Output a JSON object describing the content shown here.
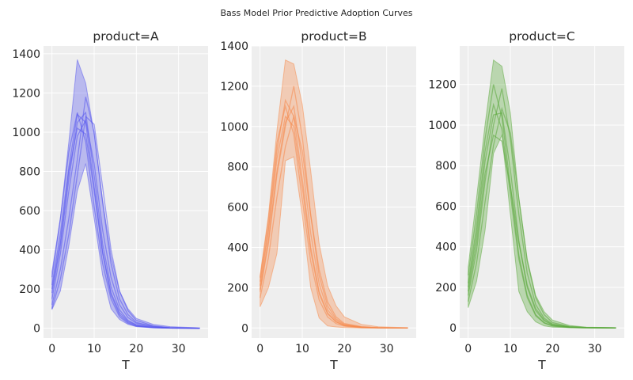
{
  "title": "Bass Model Prior Predictive Adoption Curves",
  "chart_data": [
    {
      "type": "line",
      "title": "product=A",
      "xlabel": "T",
      "ylabel": "",
      "color": "#5555ee",
      "xlim": [
        -2,
        37
      ],
      "ylim": [
        -50,
        1440
      ],
      "xticks": [
        0,
        10,
        20,
        30
      ],
      "yticks": [
        0,
        200,
        400,
        600,
        800,
        1000,
        1200,
        1400
      ],
      "grid": true,
      "band": {
        "x": [
          0,
          2,
          4,
          6,
          8,
          10,
          12,
          14,
          16,
          18,
          20,
          24,
          28,
          35
        ],
        "lower": [
          95,
          190,
          420,
          700,
          840,
          560,
          270,
          100,
          45,
          20,
          8,
          2,
          0,
          0
        ],
        "upper": [
          290,
          560,
          950,
          1370,
          1250,
          990,
          650,
          370,
          190,
          100,
          50,
          20,
          8,
          2
        ]
      },
      "series": [
        {
          "x": [
            0,
            2,
            4,
            6,
            8,
            10,
            12,
            14,
            16,
            18,
            20,
            24,
            28,
            35
          ],
          "y": [
            150,
            380,
            700,
            980,
            1060,
            840,
            500,
            260,
            120,
            55,
            25,
            8,
            2,
            0
          ]
        },
        {
          "x": [
            0,
            2,
            4,
            6,
            8,
            10,
            12,
            14,
            16,
            18,
            20,
            24,
            28,
            35
          ],
          "y": [
            220,
            480,
            820,
            1090,
            1050,
            720,
            390,
            180,
            80,
            35,
            15,
            4,
            1,
            0
          ]
        },
        {
          "x": [
            0,
            2,
            4,
            6,
            8,
            10,
            12,
            14,
            16,
            18,
            20,
            24,
            28,
            35
          ],
          "y": [
            120,
            300,
            560,
            860,
            1180,
            1000,
            640,
            330,
            150,
            70,
            30,
            9,
            2,
            0
          ]
        },
        {
          "x": [
            0,
            2,
            4,
            6,
            8,
            10,
            12,
            14,
            16,
            18,
            20,
            24,
            28,
            35
          ],
          "y": [
            260,
            560,
            900,
            1100,
            950,
            620,
            330,
            150,
            60,
            25,
            10,
            3,
            1,
            0
          ]
        },
        {
          "x": [
            0,
            2,
            4,
            6,
            8,
            10,
            12,
            14,
            16,
            18,
            20,
            24,
            28,
            35
          ],
          "y": [
            180,
            420,
            760,
            1050,
            1100,
            780,
            430,
            210,
            95,
            40,
            18,
            5,
            1,
            0
          ]
        },
        {
          "x": [
            0,
            2,
            4,
            6,
            8,
            10,
            12,
            14,
            16,
            18,
            20,
            24,
            28,
            35
          ],
          "y": [
            100,
            250,
            480,
            780,
            1080,
            1040,
            720,
            400,
            190,
            90,
            40,
            12,
            3,
            0
          ]
        },
        {
          "x": [
            0,
            2,
            4,
            6,
            8,
            10,
            12,
            14,
            16,
            18,
            20,
            24,
            28,
            35
          ],
          "y": [
            200,
            440,
            800,
            1020,
            990,
            700,
            380,
            170,
            70,
            30,
            12,
            3,
            1,
            0
          ]
        }
      ]
    },
    {
      "type": "line",
      "title": "product=B",
      "xlabel": "T",
      "ylabel": "",
      "color": "#f5894a",
      "xlim": [
        -2,
        37
      ],
      "ylim": [
        -50,
        1400
      ],
      "xticks": [
        0,
        10,
        20,
        30
      ],
      "yticks": [
        0,
        200,
        400,
        600,
        800,
        1000,
        1200,
        1400
      ],
      "grid": true,
      "band": {
        "x": [
          0,
          2,
          4,
          6,
          8,
          10,
          12,
          14,
          16,
          18,
          20,
          24,
          28,
          35
        ],
        "lower": [
          105,
          200,
          370,
          830,
          850,
          560,
          200,
          50,
          10,
          5,
          2,
          0,
          0,
          0
        ],
        "upper": [
          260,
          560,
          980,
          1330,
          1310,
          1110,
          780,
          420,
          210,
          110,
          55,
          18,
          6,
          1
        ]
      },
      "series": [
        {
          "x": [
            0,
            2,
            4,
            6,
            8,
            10,
            12,
            14,
            16,
            18,
            20,
            24,
            28,
            35
          ],
          "y": [
            210,
            480,
            840,
            1050,
            1000,
            700,
            380,
            170,
            70,
            30,
            12,
            3,
            1,
            0
          ]
        },
        {
          "x": [
            0,
            2,
            4,
            6,
            8,
            10,
            12,
            14,
            16,
            18,
            20,
            24,
            28,
            35
          ],
          "y": [
            180,
            420,
            760,
            1000,
            1200,
            950,
            560,
            260,
            110,
            45,
            18,
            5,
            1,
            0
          ]
        },
        {
          "x": [
            0,
            2,
            4,
            6,
            8,
            10,
            12,
            14,
            16,
            18,
            20,
            24,
            28,
            35
          ],
          "y": [
            250,
            540,
            920,
            1100,
            960,
            640,
            330,
            140,
            55,
            22,
            9,
            2,
            0,
            0
          ]
        },
        {
          "x": [
            0,
            2,
            4,
            6,
            8,
            10,
            12,
            14,
            16,
            18,
            20,
            24,
            28,
            35
          ],
          "y": [
            150,
            350,
            650,
            900,
            1050,
            880,
            560,
            290,
            130,
            55,
            22,
            6,
            1,
            0
          ]
        },
        {
          "x": [
            0,
            2,
            4,
            6,
            8,
            10,
            12,
            14,
            16,
            18,
            20,
            24,
            28,
            35
          ],
          "y": [
            230,
            500,
            880,
            1130,
            1050,
            740,
            400,
            180,
            75,
            30,
            12,
            3,
            1,
            0
          ]
        },
        {
          "x": [
            0,
            2,
            4,
            6,
            8,
            10,
            12,
            14,
            16,
            18,
            20,
            24,
            28,
            35
          ],
          "y": [
            190,
            440,
            780,
            1020,
            1100,
            820,
            470,
            220,
            90,
            38,
            15,
            4,
            1,
            0
          ]
        }
      ]
    },
    {
      "type": "line",
      "title": "product=C",
      "xlabel": "T",
      "ylabel": "",
      "color": "#59a83a",
      "xlim": [
        -2,
        37
      ],
      "ylim": [
        -50,
        1390
      ],
      "xticks": [
        0,
        10,
        20,
        30
      ],
      "yticks": [
        0,
        200,
        400,
        600,
        800,
        1000,
        1200
      ],
      "grid": true,
      "band": {
        "x": [
          0,
          2,
          4,
          6,
          8,
          10,
          12,
          14,
          16,
          18,
          20,
          24,
          28,
          35
        ],
        "lower": [
          100,
          230,
          480,
          860,
          950,
          560,
          180,
          80,
          30,
          10,
          4,
          1,
          0,
          0
        ],
        "upper": [
          300,
          640,
          1000,
          1320,
          1290,
          1060,
          640,
          340,
          160,
          80,
          38,
          12,
          4,
          1
        ]
      },
      "series": [
        {
          "x": [
            0,
            2,
            4,
            6,
            8,
            10,
            12,
            14,
            16,
            18,
            20,
            24,
            28,
            35
          ],
          "y": [
            200,
            460,
            820,
            1050,
            1060,
            780,
            430,
            200,
            85,
            35,
            14,
            4,
            1,
            0
          ]
        },
        {
          "x": [
            0,
            2,
            4,
            6,
            8,
            10,
            12,
            14,
            16,
            18,
            20,
            24,
            28,
            35
          ],
          "y": [
            160,
            380,
            720,
            1000,
            1180,
            930,
            560,
            270,
            115,
            48,
            19,
            5,
            1,
            0
          ]
        },
        {
          "x": [
            0,
            2,
            4,
            6,
            8,
            10,
            12,
            14,
            16,
            18,
            20,
            24,
            28,
            35
          ],
          "y": [
            260,
            560,
            930,
            1200,
            1040,
            700,
            360,
            160,
            65,
            26,
            10,
            3,
            1,
            0
          ]
        },
        {
          "x": [
            0,
            2,
            4,
            6,
            8,
            10,
            12,
            14,
            16,
            18,
            20,
            24,
            28,
            35
          ],
          "y": [
            130,
            320,
            620,
            900,
            1080,
            960,
            640,
            330,
            150,
            65,
            26,
            7,
            2,
            0
          ]
        },
        {
          "x": [
            0,
            2,
            4,
            6,
            8,
            10,
            12,
            14,
            16,
            18,
            20,
            24,
            28,
            35
          ],
          "y": [
            220,
            500,
            870,
            1100,
            980,
            660,
            340,
            150,
            60,
            24,
            9,
            2,
            0,
            0
          ]
        },
        {
          "x": [
            0,
            2,
            4,
            6,
            8,
            10,
            12,
            14,
            16,
            18,
            20,
            24,
            28,
            35
          ],
          "y": [
            180,
            420,
            760,
            950,
            920,
            700,
            420,
            210,
            95,
            40,
            16,
            4,
            1,
            0
          ]
        }
      ]
    }
  ]
}
